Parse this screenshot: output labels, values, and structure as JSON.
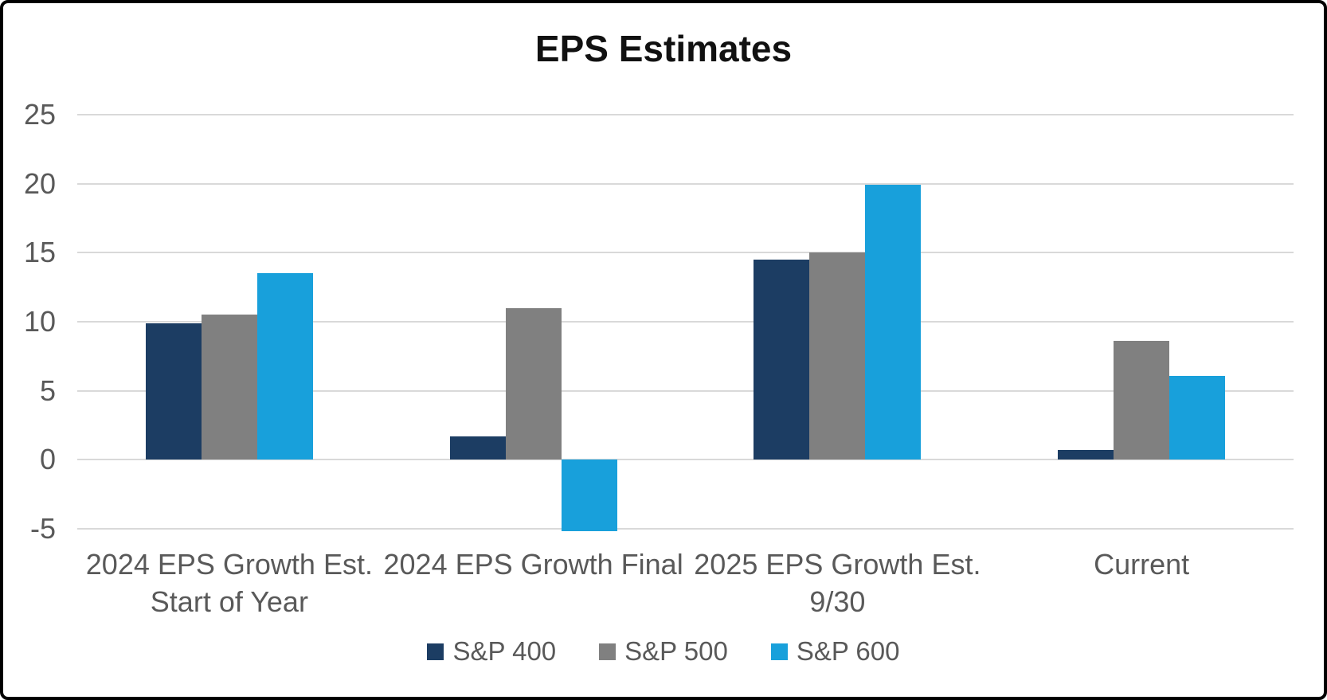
{
  "title": "EPS Estimates",
  "colors": {
    "sp400": "#1c3d63",
    "sp500": "#808080",
    "sp600": "#18a0db",
    "gridline": "#d9d9d9",
    "axis_text": "#595959",
    "title_text": "#111111",
    "frame_border": "#000000"
  },
  "chart_data": {
    "type": "bar",
    "title": "EPS Estimates",
    "categories": [
      "2024 EPS Growth Est. Start of Year",
      "2024 EPS Growth Final",
      "2025 EPS Growth Est. 9/30",
      "Current"
    ],
    "series": [
      {
        "name": "S&P 400",
        "color": "#1c3d63",
        "values": [
          9.9,
          1.7,
          14.5,
          0.7
        ]
      },
      {
        "name": "S&P 500",
        "color": "#808080",
        "values": [
          10.5,
          11.0,
          15.0,
          8.6
        ]
      },
      {
        "name": "S&P 600",
        "color": "#18a0db",
        "values": [
          13.5,
          -5.2,
          19.9,
          6.1
        ]
      }
    ],
    "y_ticks": [
      25,
      20,
      15,
      10,
      5,
      0,
      -5
    ],
    "ylim": [
      -5,
      25
    ],
    "xlabel": "",
    "ylabel": "",
    "grid": true,
    "legend_position": "bottom"
  }
}
